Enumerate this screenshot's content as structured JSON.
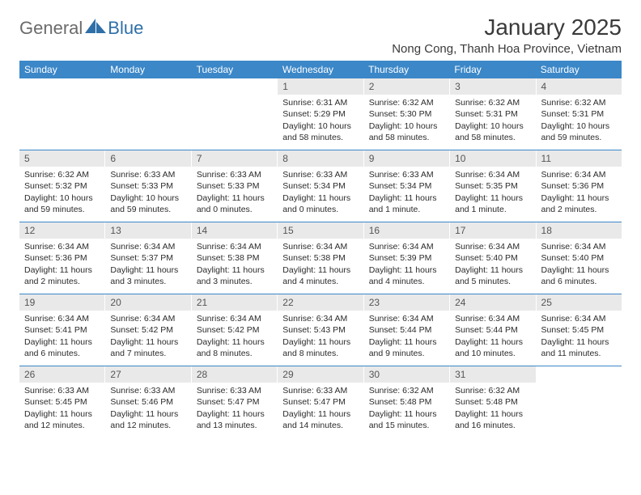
{
  "logo": {
    "text_gray": "General",
    "text_blue": "Blue"
  },
  "title": "January 2025",
  "location": "Nong Cong, Thanh Hoa Province, Vietnam",
  "colors": {
    "header_bg": "#3b87c8",
    "daynum_bg": "#e9e9e9",
    "week_border": "#3b87c8",
    "logo_gray": "#6b6b6b",
    "logo_blue": "#2f6fa8"
  },
  "day_headers": [
    "Sunday",
    "Monday",
    "Tuesday",
    "Wednesday",
    "Thursday",
    "Friday",
    "Saturday"
  ],
  "weeks": [
    [
      {
        "n": "",
        "sr": "",
        "ss": "",
        "dl": ""
      },
      {
        "n": "",
        "sr": "",
        "ss": "",
        "dl": ""
      },
      {
        "n": "",
        "sr": "",
        "ss": "",
        "dl": ""
      },
      {
        "n": "1",
        "sr": "Sunrise: 6:31 AM",
        "ss": "Sunset: 5:29 PM",
        "dl": "Daylight: 10 hours and 58 minutes."
      },
      {
        "n": "2",
        "sr": "Sunrise: 6:32 AM",
        "ss": "Sunset: 5:30 PM",
        "dl": "Daylight: 10 hours and 58 minutes."
      },
      {
        "n": "3",
        "sr": "Sunrise: 6:32 AM",
        "ss": "Sunset: 5:31 PM",
        "dl": "Daylight: 10 hours and 58 minutes."
      },
      {
        "n": "4",
        "sr": "Sunrise: 6:32 AM",
        "ss": "Sunset: 5:31 PM",
        "dl": "Daylight: 10 hours and 59 minutes."
      }
    ],
    [
      {
        "n": "5",
        "sr": "Sunrise: 6:32 AM",
        "ss": "Sunset: 5:32 PM",
        "dl": "Daylight: 10 hours and 59 minutes."
      },
      {
        "n": "6",
        "sr": "Sunrise: 6:33 AM",
        "ss": "Sunset: 5:33 PM",
        "dl": "Daylight: 10 hours and 59 minutes."
      },
      {
        "n": "7",
        "sr": "Sunrise: 6:33 AM",
        "ss": "Sunset: 5:33 PM",
        "dl": "Daylight: 11 hours and 0 minutes."
      },
      {
        "n": "8",
        "sr": "Sunrise: 6:33 AM",
        "ss": "Sunset: 5:34 PM",
        "dl": "Daylight: 11 hours and 0 minutes."
      },
      {
        "n": "9",
        "sr": "Sunrise: 6:33 AM",
        "ss": "Sunset: 5:34 PM",
        "dl": "Daylight: 11 hours and 1 minute."
      },
      {
        "n": "10",
        "sr": "Sunrise: 6:34 AM",
        "ss": "Sunset: 5:35 PM",
        "dl": "Daylight: 11 hours and 1 minute."
      },
      {
        "n": "11",
        "sr": "Sunrise: 6:34 AM",
        "ss": "Sunset: 5:36 PM",
        "dl": "Daylight: 11 hours and 2 minutes."
      }
    ],
    [
      {
        "n": "12",
        "sr": "Sunrise: 6:34 AM",
        "ss": "Sunset: 5:36 PM",
        "dl": "Daylight: 11 hours and 2 minutes."
      },
      {
        "n": "13",
        "sr": "Sunrise: 6:34 AM",
        "ss": "Sunset: 5:37 PM",
        "dl": "Daylight: 11 hours and 3 minutes."
      },
      {
        "n": "14",
        "sr": "Sunrise: 6:34 AM",
        "ss": "Sunset: 5:38 PM",
        "dl": "Daylight: 11 hours and 3 minutes."
      },
      {
        "n": "15",
        "sr": "Sunrise: 6:34 AM",
        "ss": "Sunset: 5:38 PM",
        "dl": "Daylight: 11 hours and 4 minutes."
      },
      {
        "n": "16",
        "sr": "Sunrise: 6:34 AM",
        "ss": "Sunset: 5:39 PM",
        "dl": "Daylight: 11 hours and 4 minutes."
      },
      {
        "n": "17",
        "sr": "Sunrise: 6:34 AM",
        "ss": "Sunset: 5:40 PM",
        "dl": "Daylight: 11 hours and 5 minutes."
      },
      {
        "n": "18",
        "sr": "Sunrise: 6:34 AM",
        "ss": "Sunset: 5:40 PM",
        "dl": "Daylight: 11 hours and 6 minutes."
      }
    ],
    [
      {
        "n": "19",
        "sr": "Sunrise: 6:34 AM",
        "ss": "Sunset: 5:41 PM",
        "dl": "Daylight: 11 hours and 6 minutes."
      },
      {
        "n": "20",
        "sr": "Sunrise: 6:34 AM",
        "ss": "Sunset: 5:42 PM",
        "dl": "Daylight: 11 hours and 7 minutes."
      },
      {
        "n": "21",
        "sr": "Sunrise: 6:34 AM",
        "ss": "Sunset: 5:42 PM",
        "dl": "Daylight: 11 hours and 8 minutes."
      },
      {
        "n": "22",
        "sr": "Sunrise: 6:34 AM",
        "ss": "Sunset: 5:43 PM",
        "dl": "Daylight: 11 hours and 8 minutes."
      },
      {
        "n": "23",
        "sr": "Sunrise: 6:34 AM",
        "ss": "Sunset: 5:44 PM",
        "dl": "Daylight: 11 hours and 9 minutes."
      },
      {
        "n": "24",
        "sr": "Sunrise: 6:34 AM",
        "ss": "Sunset: 5:44 PM",
        "dl": "Daylight: 11 hours and 10 minutes."
      },
      {
        "n": "25",
        "sr": "Sunrise: 6:34 AM",
        "ss": "Sunset: 5:45 PM",
        "dl": "Daylight: 11 hours and 11 minutes."
      }
    ],
    [
      {
        "n": "26",
        "sr": "Sunrise: 6:33 AM",
        "ss": "Sunset: 5:45 PM",
        "dl": "Daylight: 11 hours and 12 minutes."
      },
      {
        "n": "27",
        "sr": "Sunrise: 6:33 AM",
        "ss": "Sunset: 5:46 PM",
        "dl": "Daylight: 11 hours and 12 minutes."
      },
      {
        "n": "28",
        "sr": "Sunrise: 6:33 AM",
        "ss": "Sunset: 5:47 PM",
        "dl": "Daylight: 11 hours and 13 minutes."
      },
      {
        "n": "29",
        "sr": "Sunrise: 6:33 AM",
        "ss": "Sunset: 5:47 PM",
        "dl": "Daylight: 11 hours and 14 minutes."
      },
      {
        "n": "30",
        "sr": "Sunrise: 6:32 AM",
        "ss": "Sunset: 5:48 PM",
        "dl": "Daylight: 11 hours and 15 minutes."
      },
      {
        "n": "31",
        "sr": "Sunrise: 6:32 AM",
        "ss": "Sunset: 5:48 PM",
        "dl": "Daylight: 11 hours and 16 minutes."
      },
      {
        "n": "",
        "sr": "",
        "ss": "",
        "dl": ""
      }
    ]
  ]
}
